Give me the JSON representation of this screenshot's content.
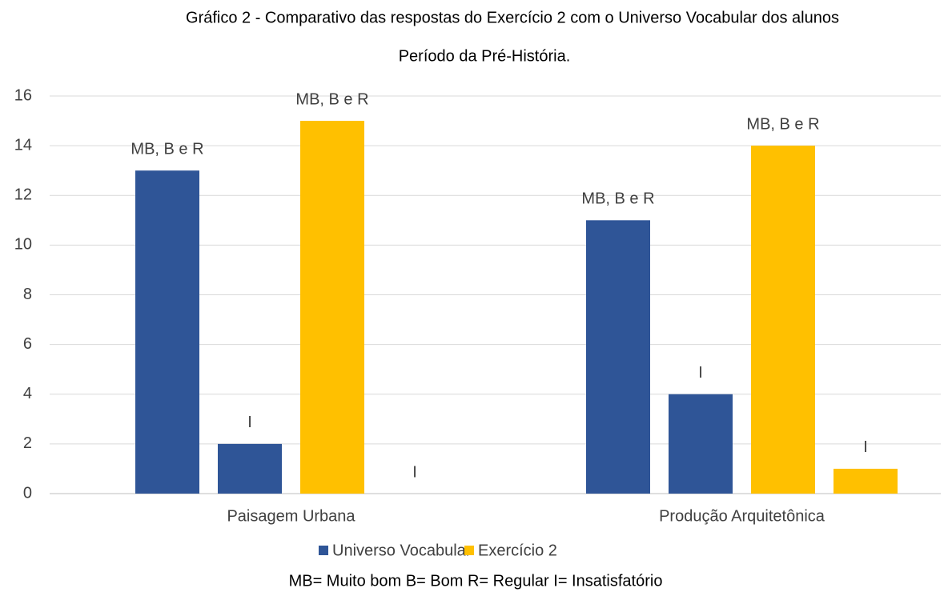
{
  "chart_data": {
    "type": "bar",
    "title": "Gráfico 2 - Comparativo das respostas do Exercício 2 com o Universo Vocabular dos alunos",
    "subtitle": "Período da Pré-História.",
    "categories": [
      "Paisagem Urbana",
      "Produção Arquitetônica"
    ],
    "series": [
      {
        "name": "Universo Vocabular",
        "color": "#2f5597",
        "values": [
          [
            13,
            2
          ],
          [
            11,
            4
          ]
        ],
        "bar_labels": [
          [
            "MB, B e R",
            "I"
          ],
          [
            "MB, B e R",
            "I"
          ]
        ]
      },
      {
        "name": "Exercício 2",
        "color": "#ffc000",
        "values": [
          [
            15,
            0
          ],
          [
            14,
            1
          ]
        ],
        "bar_labels": [
          [
            "MB, B e R",
            "I"
          ],
          [
            "MB, B e R",
            "I"
          ]
        ]
      }
    ],
    "ylim": [
      0,
      16
    ],
    "yticks": [
      0,
      2,
      4,
      6,
      8,
      10,
      12,
      14,
      16
    ],
    "grid": true,
    "note": "MB= Muito bom  B= Bom  R= Regular  I= Insatisfatório"
  }
}
